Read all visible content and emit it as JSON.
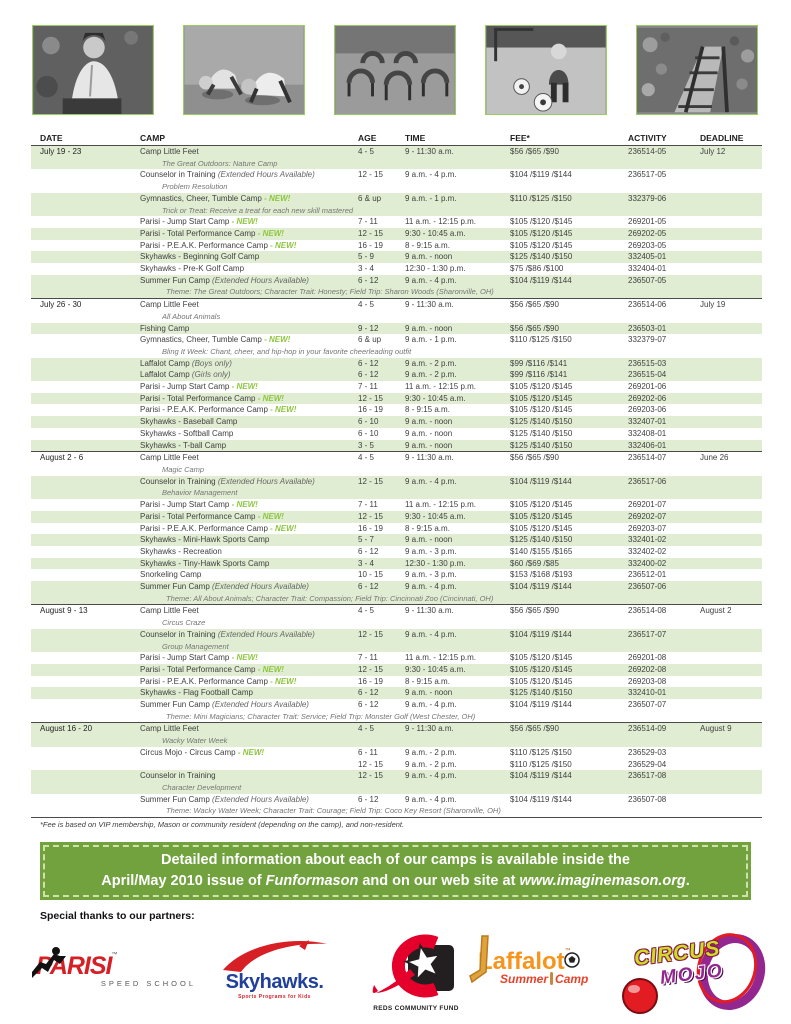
{
  "table": {
    "headers": [
      "DATE",
      "CAMP",
      "AGE",
      "TIME",
      "FEE*",
      "ACTIVITY",
      "DEADLINE"
    ],
    "shade_color": "#e1edd2",
    "sections": [
      {
        "date": "July 19 - 23",
        "deadline": "July 12",
        "rows": [
          {
            "camp": "Camp Little Feet",
            "subtitle": "The Great Outdoors: Nature Camp",
            "age": "4 - 5",
            "time": "9 - 11:30 a.m.",
            "fee": "$56 /$65 /$90",
            "activity": "236514-05",
            "shade": true
          },
          {
            "camp": "Counselor in Training",
            "note": "(Extended Hours Available)",
            "subtitle": "Problem Resolution",
            "age": "12 - 15",
            "time": "9 a.m. - 4 p.m.",
            "fee": "$104 /$119 /$144",
            "activity": "236517-05",
            "shade": false
          },
          {
            "camp": "Gymnastics, Cheer, Tumble Camp",
            "new": true,
            "subtitle": "Trick or Treat: Receive a treat for each new skill mastered",
            "age": "6 & up",
            "time": "9 a.m. - 1 p.m.",
            "fee": "$110 /$125 /$150",
            "activity": "332379-06",
            "shade": true
          },
          {
            "camp": "Parisi - Jump Start Camp",
            "new": true,
            "age": "7 - 11",
            "time": "11 a.m. - 12:15 p.m.",
            "fee": "$105 /$120 /$145",
            "activity": "269201-05",
            "shade": false
          },
          {
            "camp": "Parisi - Total Performance Camp",
            "new": true,
            "age": "12 - 15",
            "time": "9:30 - 10:45 a.m.",
            "fee": "$105 /$120 /$145",
            "activity": "269202-05",
            "shade": true
          },
          {
            "camp": "Parisi - P.E.A.K. Performance Camp",
            "new": true,
            "age": "16 - 19",
            "time": "8 - 9:15 a.m.",
            "fee": "$105 /$120 /$145",
            "activity": "269203-05",
            "shade": false
          },
          {
            "camp": "Skyhawks - Beginning Golf Camp",
            "age": "5 - 9",
            "time": "9 a.m. - noon",
            "fee": "$125 /$140 /$150",
            "activity": "332405-01",
            "shade": true
          },
          {
            "camp": "Skyhawks - Pre-K Golf Camp",
            "age": "3 - 4",
            "time": "12:30 - 1:30 p.m.",
            "fee": "$75 /$86 /$100",
            "activity": "332404-01",
            "shade": false
          },
          {
            "camp": "Summer Fun Camp",
            "note": "(Extended Hours Available)",
            "age": "6 - 12",
            "time": "9 a.m. - 4 p.m.",
            "fee": "$104 /$119 /$144",
            "activity": "236507-05",
            "shade": true,
            "theme": "Theme: The Great Outdoors; Character Trait: Honesty; Field Trip: Sharon Woods (Sharonville, OH)"
          }
        ]
      },
      {
        "date": "July 26 - 30",
        "deadline": "July 19",
        "rows": [
          {
            "camp": "Camp Little Feet",
            "subtitle": "All About Animals",
            "age": "4 - 5",
            "time": "9 - 11:30 a.m.",
            "fee": "$56 /$65 /$90",
            "activity": "236514-06",
            "shade": false
          },
          {
            "camp": "Fishing Camp",
            "age": "9 - 12",
            "time": "9 a.m. - noon",
            "fee": "$56 /$65 /$90",
            "activity": "236503-01",
            "shade": true
          },
          {
            "camp": "Gymnastics, Cheer, Tumble Camp",
            "new": true,
            "subtitle": "Bling It Week: Chant, cheer, and hip-hop in your favorite cheerleading outfit",
            "age": "6 & up",
            "time": "9 a.m. - 1 p.m.",
            "fee": "$110 /$125 /$150",
            "activity": "332379-07",
            "shade": false
          },
          {
            "camp": "Laffalot Camp",
            "note": "(Boys only)",
            "age": "6 - 12",
            "time": "9 a.m. - 2 p.m.",
            "fee": "$99 /$116 /$141",
            "activity": "236515-03",
            "shade": true
          },
          {
            "camp": "Laffalot Camp",
            "note": "(Girls only)",
            "age": "6 - 12",
            "time": "9 a.m. - 2 p.m.",
            "fee": "$99 /$116 /$141",
            "activity": "236515-04",
            "shade": true
          },
          {
            "camp": "Parisi - Jump Start Camp",
            "new": true,
            "age": "7 - 11",
            "time": "11 a.m. - 12:15 p.m.",
            "fee": "$105 /$120 /$145",
            "activity": "269201-06",
            "shade": false
          },
          {
            "camp": "Parisi - Total Performance Camp",
            "new": true,
            "age": "12 - 15",
            "time": "9:30 - 10:45 a.m.",
            "fee": "$105 /$120 /$145",
            "activity": "269202-06",
            "shade": true
          },
          {
            "camp": "Parisi - P.E.A.K. Performance Camp",
            "new": true,
            "age": "16 - 19",
            "time": "8 - 9:15 a.m.",
            "fee": "$105 /$120 /$145",
            "activity": "269203-06",
            "shade": false
          },
          {
            "camp": "Skyhawks - Baseball Camp",
            "age": "6 - 10",
            "time": "9 a.m. - noon",
            "fee": "$125 /$140 /$150",
            "activity": "332407-01",
            "shade": true
          },
          {
            "camp": "Skyhawks - Softball Camp",
            "age": "6 - 10",
            "time": "9 a.m. - noon",
            "fee": "$125 /$140 /$150",
            "activity": "332408-01",
            "shade": false
          },
          {
            "camp": "Skyhawks - T-ball Camp",
            "age": "3 - 5",
            "time": "9 a.m. - noon",
            "fee": "$125 /$140 /$150",
            "activity": "332406-01",
            "shade": true
          }
        ]
      },
      {
        "date": "August 2 - 6",
        "deadline": "June 26",
        "rows": [
          {
            "camp": "Camp Little Feet",
            "subtitle": "Magic Camp",
            "age": "4 - 5",
            "time": "9 - 11:30 a.m.",
            "fee": "$56 /$65 /$90",
            "activity": "236514-07",
            "shade": false
          },
          {
            "camp": "Counselor in Training",
            "note": "(Extended Hours Available)",
            "subtitle": "Behavior Management",
            "age": "12 - 15",
            "time": "9 a.m. - 4 p.m.",
            "fee": "$104 /$119 /$144",
            "activity": "236517-06",
            "shade": true
          },
          {
            "camp": "Parisi - Jump Start Camp",
            "new": true,
            "age": "7 - 11",
            "time": "11 a.m. - 12:15 p.m.",
            "fee": "$105 /$120 /$145",
            "activity": "269201-07",
            "shade": false
          },
          {
            "camp": "Parisi - Total Performance Camp",
            "new": true,
            "age": "12 - 15",
            "time": "9:30 - 10:45 a.m.",
            "fee": "$105 /$120 /$145",
            "activity": "269202-07",
            "shade": true
          },
          {
            "camp": "Parisi - P.E.A.K. Performance Camp",
            "new": true,
            "age": "16 - 19",
            "time": "8 - 9:15 a.m.",
            "fee": "$105 /$120 /$145",
            "activity": "269203-07",
            "shade": false
          },
          {
            "camp": "Skyhawks - Mini-Hawk Sports Camp",
            "age": "5 - 7",
            "time": "9 a.m. - noon",
            "fee": "$125 /$140 /$150",
            "activity": "332401-02",
            "shade": true
          },
          {
            "camp": "Skyhawks - Recreation",
            "age": "6 - 12",
            "time": "9 a.m. - 3 p.m.",
            "fee": "$140 /$155 /$165",
            "activity": "332402-02",
            "shade": false
          },
          {
            "camp": "Skyhawks - Tiny-Hawk Sports Camp",
            "age": "3 - 4",
            "time": "12:30 - 1:30 p.m.",
            "fee": "$60 /$69 /$85",
            "activity": "332400-02",
            "shade": true
          },
          {
            "camp": "Snorkeling Camp",
            "age": "10 - 15",
            "time": "9 a.m. - 3 p.m.",
            "fee": "$153 /$168 /$193",
            "activity": "236512-01",
            "shade": false
          },
          {
            "camp": "Summer Fun Camp",
            "note": "(Extended Hours Available)",
            "age": "6 - 12",
            "time": "9 a.m. - 4 p.m.",
            "fee": "$104 /$119 /$144",
            "activity": "236507-06",
            "shade": true,
            "theme": "Theme: All About Animals; Character Trait: Compassion; Field Trip: Cincinnati Zoo (Cincinnati, OH)"
          }
        ]
      },
      {
        "date": "August 9 - 13",
        "deadline": "August 2",
        "rows": [
          {
            "camp": "Camp Little Feet",
            "subtitle": "Circus Craze",
            "age": "4 - 5",
            "time": "9 - 11:30 a.m.",
            "fee": "$56 /$65 /$90",
            "activity": "236514-08",
            "shade": false
          },
          {
            "camp": "Counselor in Training",
            "note": "(Extended Hours Available)",
            "subtitle": "Group Management",
            "age": "12 - 15",
            "time": "9 a.m. - 4 p.m.",
            "fee": "$104 /$119 /$144",
            "activity": "236517-07",
            "shade": true
          },
          {
            "camp": "Parisi - Jump Start Camp",
            "new": true,
            "age": "7 - 11",
            "time": "11 a.m. - 12:15 p.m.",
            "fee": "$105 /$120 /$145",
            "activity": "269201-08",
            "shade": false
          },
          {
            "camp": "Parisi - Total Performance Camp",
            "new": true,
            "age": "12 - 15",
            "time": "9:30 - 10:45 a.m.",
            "fee": "$105 /$120 /$145",
            "activity": "269202-08",
            "shade": true
          },
          {
            "camp": "Parisi - P.E.A.K. Performance Camp",
            "new": true,
            "age": "16 - 19",
            "time": "8 - 9:15 a.m.",
            "fee": "$105 /$120 /$145",
            "activity": "269203-08",
            "shade": false
          },
          {
            "camp": "Skyhawks - Flag Football Camp",
            "age": "6 - 12",
            "time": "9 a.m. - noon",
            "fee": "$125 /$140 /$150",
            "activity": "332410-01",
            "shade": true
          },
          {
            "camp": "Summer Fun Camp",
            "note": "(Extended Hours Available)",
            "age": "6 - 12",
            "time": "9 a.m. - 4 p.m.",
            "fee": "$104 /$119 /$144",
            "activity": "236507-07",
            "shade": false,
            "theme": "Theme: Mini Magicians; Character Trait: Service; Field Trip: Monster Golf (West Chester, OH)"
          }
        ]
      },
      {
        "date": "August 16 - 20",
        "deadline": "August 9",
        "rows": [
          {
            "camp": "Camp Little Feet",
            "subtitle": "Wacky Water Week",
            "age": "4 - 5",
            "time": "9 - 11:30 a.m.",
            "fee": "$56 /$65 /$90",
            "activity": "236514-09",
            "shade": true
          },
          {
            "camp": "Circus Mojo - Circus Camp",
            "new": true,
            "age": "6 - 11",
            "time": "9 a.m. - 2 p.m.",
            "fee": "$110 /$125 /$150",
            "activity": "236529-03",
            "shade": false
          },
          {
            "camp": "",
            "age": "12 - 15",
            "time": "9 a.m. - 2 p.m.",
            "fee": "$110 /$125 /$150",
            "activity": "236529-04",
            "shade": false
          },
          {
            "camp": "Counselor in Training",
            "subtitle": "Character Development",
            "age": "12 - 15",
            "time": "9 a.m. - 4 p.m.",
            "fee": "$104 /$119 /$144",
            "activity": "236517-08",
            "shade": true
          },
          {
            "camp": "Summer Fun Camp",
            "note": "(Extended Hours Available)",
            "age": "6 - 12",
            "time": "9 a.m. - 4 p.m.",
            "fee": "$104 /$119 /$144",
            "activity": "236507-08",
            "shade": false,
            "theme": "Theme: Wacky Water Week; Character Trait: Courage; Field Trip: Coco Key Resort (Sharonville, OH)"
          }
        ]
      }
    ]
  },
  "labels": {
    "new_flag": "- NEW!"
  },
  "footnote": "*Fee is based on VIP membership, Mason or community resident (depending on the camp), and non-resident.",
  "banner": {
    "bg_color": "#71a23e",
    "line1": "Detailed information about each of our camps is available inside the",
    "line2_pre": "April/May 2010 issue of ",
    "line2_italic1": "Funformason",
    "line2_mid": " and on our web site at ",
    "line2_italic2": "www.imaginemason.org",
    "line2_end": "."
  },
  "partners": {
    "heading": "Special thanks to our partners:",
    "parisi": {
      "name": "PARISI",
      "tm": "™",
      "sub": "SPEED SCHOOL",
      "color": "#d71f26"
    },
    "skyhawks": {
      "name": "Skyhawks.",
      "tagline": "Sports Programs for Kids",
      "color": "#21409a"
    },
    "reds": {
      "name": "REDS COMMUNITY FUND",
      "color": "#e4002b"
    },
    "laffalot": {
      "name": "Laffalot",
      "tm": "™",
      "sub_left": "Summer",
      "sub_right": "Camp",
      "color": "#f7941d"
    },
    "circusmojo": {
      "line1": "CIRCUS",
      "line2": "MOJO",
      "color1": "#cddc29",
      "color2": "#93278f"
    }
  }
}
